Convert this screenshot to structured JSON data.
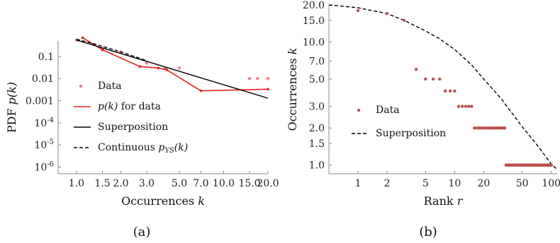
{
  "chart_data": [
    {
      "type": "scatter",
      "panel_label": "(a)",
      "xlabel": "Occurrences k",
      "ylabel": "PDF p(k)",
      "x_scale": "log",
      "y_scale": "log",
      "xlim": [
        0.75,
        20
      ],
      "ylim": [
        5e-07,
        0.5
      ],
      "x_ticks": [
        {
          "v": 1.0,
          "label": "1.0"
        },
        {
          "v": 1.5,
          "label": "1.5"
        },
        {
          "v": 2.0,
          "label": "2.0"
        },
        {
          "v": 3.0,
          "label": "3.0"
        },
        {
          "v": 5.0,
          "label": "5.0"
        },
        {
          "v": 7.0,
          "label": "7.0"
        },
        {
          "v": 10.0,
          "label": "10.0"
        },
        {
          "v": 15.0,
          "label": "15.0"
        },
        {
          "v": 20.0,
          "label": "20.0"
        }
      ],
      "y_ticks": [
        {
          "v": 0.1,
          "label": "0.1"
        },
        {
          "v": 0.01,
          "label": "0.01"
        },
        {
          "v": 0.001,
          "label": "0.001"
        },
        {
          "v": 0.0001,
          "label": "10^-4"
        },
        {
          "v": 1e-05,
          "label": "10^-5"
        },
        {
          "v": 1e-06,
          "label": "10^-6"
        }
      ],
      "legend_position": "left-middle",
      "series": [
        {
          "name": "Data",
          "kind": "points",
          "color": "#f08080",
          "x": [
            1,
            1.5,
            2,
            3,
            4,
            5,
            15,
            17,
            20
          ],
          "y": [
            0.55,
            0.2,
            0.16,
            0.05,
            0.03,
            0.03,
            0.01,
            0.01,
            0.01
          ]
        },
        {
          "name": "p(k) for data",
          "kind": "line",
          "color": "#e8201e",
          "x": [
            1.1,
            1.5,
            2.7,
            3.6,
            4.1,
            7.0,
            20
          ],
          "y": [
            0.7,
            0.2,
            0.035,
            0.03,
            0.025,
            0.0028,
            0.0033
          ]
        },
        {
          "name": "Superposition",
          "kind": "line",
          "color": "#000000",
          "x": [
            1,
            20
          ],
          "y": [
            0.55,
            0.0013
          ]
        },
        {
          "name": "Continuous p_YS(k)",
          "kind": "dashed",
          "color": "#000000",
          "x": [
            1,
            1.3,
            1.6,
            2,
            3
          ],
          "y": [
            0.6,
            0.38,
            0.25,
            0.16,
            0.065
          ]
        }
      ],
      "legend": [
        {
          "key": "Data",
          "text": "Data"
        },
        {
          "key": "p(k) for data",
          "text": "p(k) for data"
        },
        {
          "key": "Superposition",
          "text": "Superposition"
        },
        {
          "key": "Continuous p_YS(k)",
          "text": "Continuous p_YS(k)"
        }
      ]
    },
    {
      "type": "scatter",
      "panel_label": "(b)",
      "xlabel": "Rank r",
      "ylabel": "Occurrences k",
      "x_scale": "log",
      "y_scale": "log",
      "xlim": [
        0.5,
        115
      ],
      "ylim": [
        0.85,
        20
      ],
      "x_ticks": [
        {
          "v": 1,
          "label": "1"
        },
        {
          "v": 2,
          "label": "2"
        },
        {
          "v": 5,
          "label": "5"
        },
        {
          "v": 10,
          "label": "10"
        },
        {
          "v": 20,
          "label": "20"
        },
        {
          "v": 50,
          "label": "50"
        },
        {
          "v": 100,
          "label": "100"
        }
      ],
      "y_ticks": [
        {
          "v": 1.0,
          "label": "1.0"
        },
        {
          "v": 1.5,
          "label": "1.5"
        },
        {
          "v": 2.0,
          "label": "2.0"
        },
        {
          "v": 3.0,
          "label": "3.0"
        },
        {
          "v": 5.0,
          "label": "5.0"
        },
        {
          "v": 7.0,
          "label": "7.0"
        },
        {
          "v": 10.0,
          "label": "10.0"
        },
        {
          "v": 15.0,
          "label": "15.0"
        },
        {
          "v": 20.0,
          "label": "20.0"
        }
      ],
      "legend_position": "left-middle",
      "series": [
        {
          "name": "Data",
          "kind": "points",
          "color": "#b5524f",
          "groups": [
            {
              "k": 18,
              "r_from": 1,
              "r_to": 1
            },
            {
              "k": 17,
              "r_from": 2,
              "r_to": 2
            },
            {
              "k": 15,
              "r_from": 3,
              "r_to": 3
            },
            {
              "k": 6,
              "r_from": 4,
              "r_to": 4
            },
            {
              "k": 5,
              "r_from": 5,
              "r_to": 7
            },
            {
              "k": 4,
              "r_from": 8,
              "r_to": 10
            },
            {
              "k": 3,
              "r_from": 11,
              "r_to": 15
            },
            {
              "k": 2,
              "r_from": 16,
              "r_to": 33
            },
            {
              "k": 1,
              "r_from": 34,
              "r_to": 100
            }
          ]
        },
        {
          "name": "Superposition",
          "kind": "dashed",
          "color": "#000000",
          "x": [
            0.5,
            1,
            2,
            3,
            5,
            7,
            10,
            15,
            20,
            30,
            50,
            70,
            100,
            115
          ],
          "y": [
            20,
            19,
            17,
            15,
            12.3,
            10.6,
            8.7,
            6.5,
            5.0,
            3.5,
            2.05,
            1.48,
            1.02,
            0.92
          ]
        }
      ],
      "legend": [
        {
          "key": "Data",
          "text": "Data"
        },
        {
          "key": "Superposition",
          "text": "Superposition"
        }
      ]
    }
  ]
}
